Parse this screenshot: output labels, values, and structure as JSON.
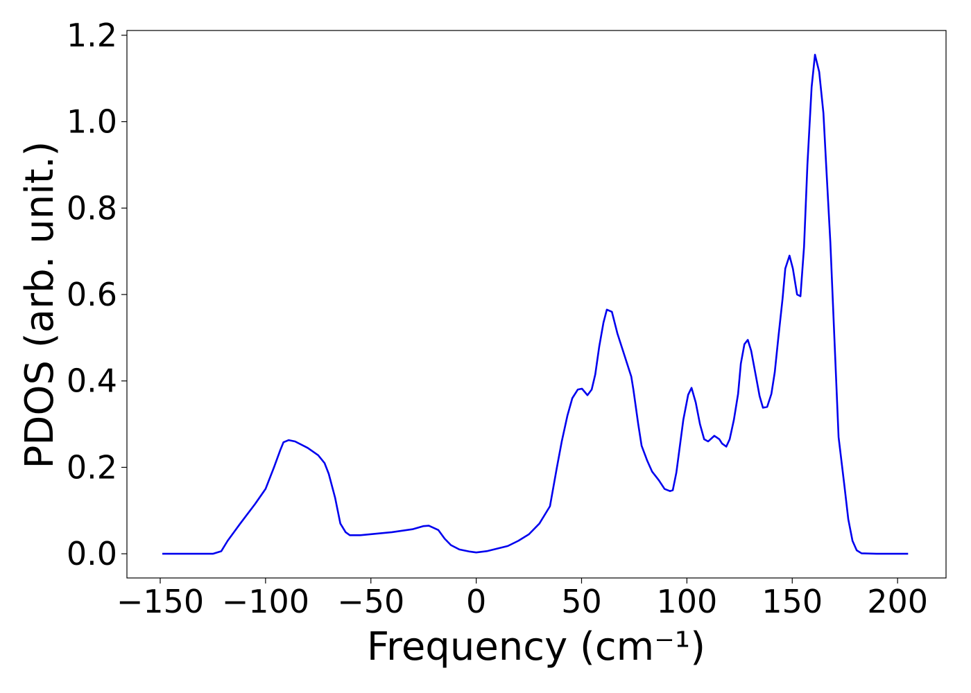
{
  "chart_data": {
    "type": "line",
    "xlabel": "Frequency (cm⁻¹)",
    "ylabel": "PDOS (arb. unit.)",
    "xlim": [
      -165.8,
      223
    ],
    "ylim": [
      -0.056,
      1.211
    ],
    "xticks": [
      {
        "value": -150,
        "label": "−150"
      },
      {
        "value": -100,
        "label": "−100"
      },
      {
        "value": -50,
        "label": "−50"
      },
      0,
      50,
      100,
      150,
      200
    ],
    "yticks": [
      {
        "value": 0,
        "label": "0.0"
      },
      0.2,
      0.4,
      0.6,
      0.8,
      {
        "value": 1,
        "label": "1.0"
      },
      1.2
    ],
    "grid": false,
    "x": [
      -149,
      -125,
      -121,
      -118,
      -112,
      -105,
      -100,
      -96,
      -93,
      -91.5,
      -89,
      -86,
      -80,
      -75,
      -72,
      -70,
      -67,
      -64.5,
      -62,
      -60,
      -55,
      -40,
      -30,
      -25,
      -22.5,
      -18,
      -15,
      -12,
      -8,
      -3,
      0,
      5,
      15,
      20,
      25,
      30,
      35,
      38.3,
      40.6,
      43.3,
      45.6,
      48.2,
      50.2,
      52.8,
      54.8,
      56.5,
      58.4,
      60.4,
      62,
      64.4,
      67,
      70.3,
      73.6,
      74.6,
      76.9,
      78.5,
      81.2,
      83.5,
      86.7,
      89.4,
      92,
      93.3,
      95,
      98.3,
      100.6,
      102.2,
      104.2,
      106.2,
      108.2,
      110.1,
      113,
      115.4,
      116.7,
      118.7,
      120.3,
      122.3,
      124.3,
      125.6,
      127.3,
      128.9,
      130.5,
      132.8,
      134.5,
      136.1,
      138.1,
      140.1,
      141.7,
      143.4,
      145.4,
      146.7,
      148.7,
      150.3,
      152.3,
      153.9,
      155.6,
      157.2,
      159.2,
      160.8,
      162.8,
      164.8,
      166.1,
      168.1,
      170,
      172,
      174.7,
      176.6,
      178.6,
      180.6,
      182.9,
      190,
      205
    ],
    "series": [
      {
        "name": "PDOS",
        "color": "#0000ee",
        "values": [
          0,
          0,
          0.006,
          0.03,
          0.07,
          0.115,
          0.15,
          0.2,
          0.24,
          0.258,
          0.263,
          0.26,
          0.245,
          0.228,
          0.21,
          0.185,
          0.13,
          0.07,
          0.05,
          0.043,
          0.043,
          0.05,
          0.057,
          0.064,
          0.065,
          0.055,
          0.035,
          0.02,
          0.01,
          0.005,
          0.003,
          0.006,
          0.018,
          0.03,
          0.045,
          0.07,
          0.11,
          0.2,
          0.26,
          0.32,
          0.36,
          0.38,
          0.382,
          0.367,
          0.38,
          0.415,
          0.48,
          0.535,
          0.565,
          0.56,
          0.51,
          0.46,
          0.41,
          0.38,
          0.3,
          0.25,
          0.215,
          0.19,
          0.17,
          0.15,
          0.145,
          0.147,
          0.188,
          0.31,
          0.368,
          0.384,
          0.35,
          0.3,
          0.265,
          0.26,
          0.273,
          0.265,
          0.255,
          0.248,
          0.265,
          0.31,
          0.37,
          0.44,
          0.485,
          0.495,
          0.47,
          0.41,
          0.365,
          0.338,
          0.34,
          0.37,
          0.42,
          0.5,
          0.59,
          0.66,
          0.69,
          0.66,
          0.6,
          0.596,
          0.71,
          0.9,
          1.08,
          1.155,
          1.115,
          1.02,
          0.9,
          0.72,
          0.5,
          0.27,
          0.16,
          0.08,
          0.03,
          0.008,
          0.001,
          0,
          0
        ]
      }
    ]
  }
}
